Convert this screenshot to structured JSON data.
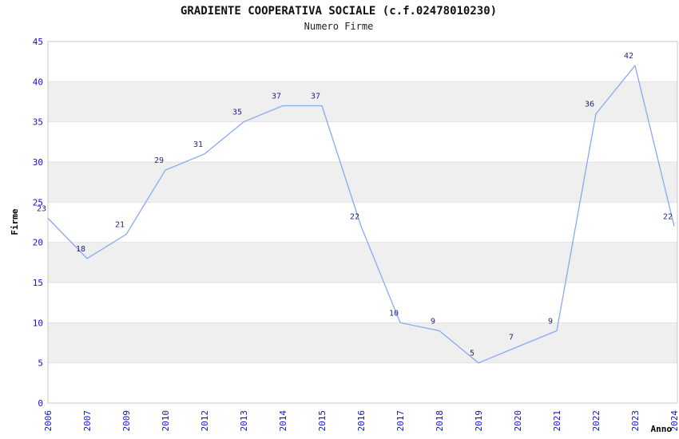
{
  "page": {
    "title": "GRADIENTE COOPERATIVA SOCIALE (c.f.02478010230)",
    "subtitle": "Numero Firme"
  },
  "chart_data": {
    "type": "line",
    "title": "GRADIENTE COOPERATIVA SOCIALE (c.f.02478010230)",
    "subtitle": "Numero Firme",
    "xlabel": "Anno",
    "ylabel": "Firme",
    "categories": [
      "2006",
      "2007",
      "2009",
      "2010",
      "2012",
      "2013",
      "2014",
      "2015",
      "2016",
      "2017",
      "2018",
      "2019",
      "2020",
      "2021",
      "2022",
      "2023",
      "2024"
    ],
    "values": [
      23,
      18,
      21,
      29,
      31,
      35,
      37,
      37,
      22,
      10,
      9,
      5,
      7,
      9,
      36,
      42,
      22
    ],
    "point_labels": [
      "23",
      "18",
      "21",
      "29",
      "31",
      "35",
      "37",
      "37",
      "22",
      "10",
      "9",
      "5",
      "7",
      "9",
      "36",
      "42",
      "22"
    ],
    "ylim": [
      0,
      45
    ],
    "yticks": [
      0,
      5,
      10,
      15,
      20,
      25,
      30,
      35,
      40,
      45
    ],
    "grid": "horizontal-bands",
    "legend": "none",
    "colors": {
      "line": "#88aaee",
      "tick_label": "#1111cc",
      "point_label": "#262680",
      "band": "#efefef",
      "gridline": "#e2e2e2",
      "border": "#c9c9c9",
      "title": "#111111"
    }
  }
}
